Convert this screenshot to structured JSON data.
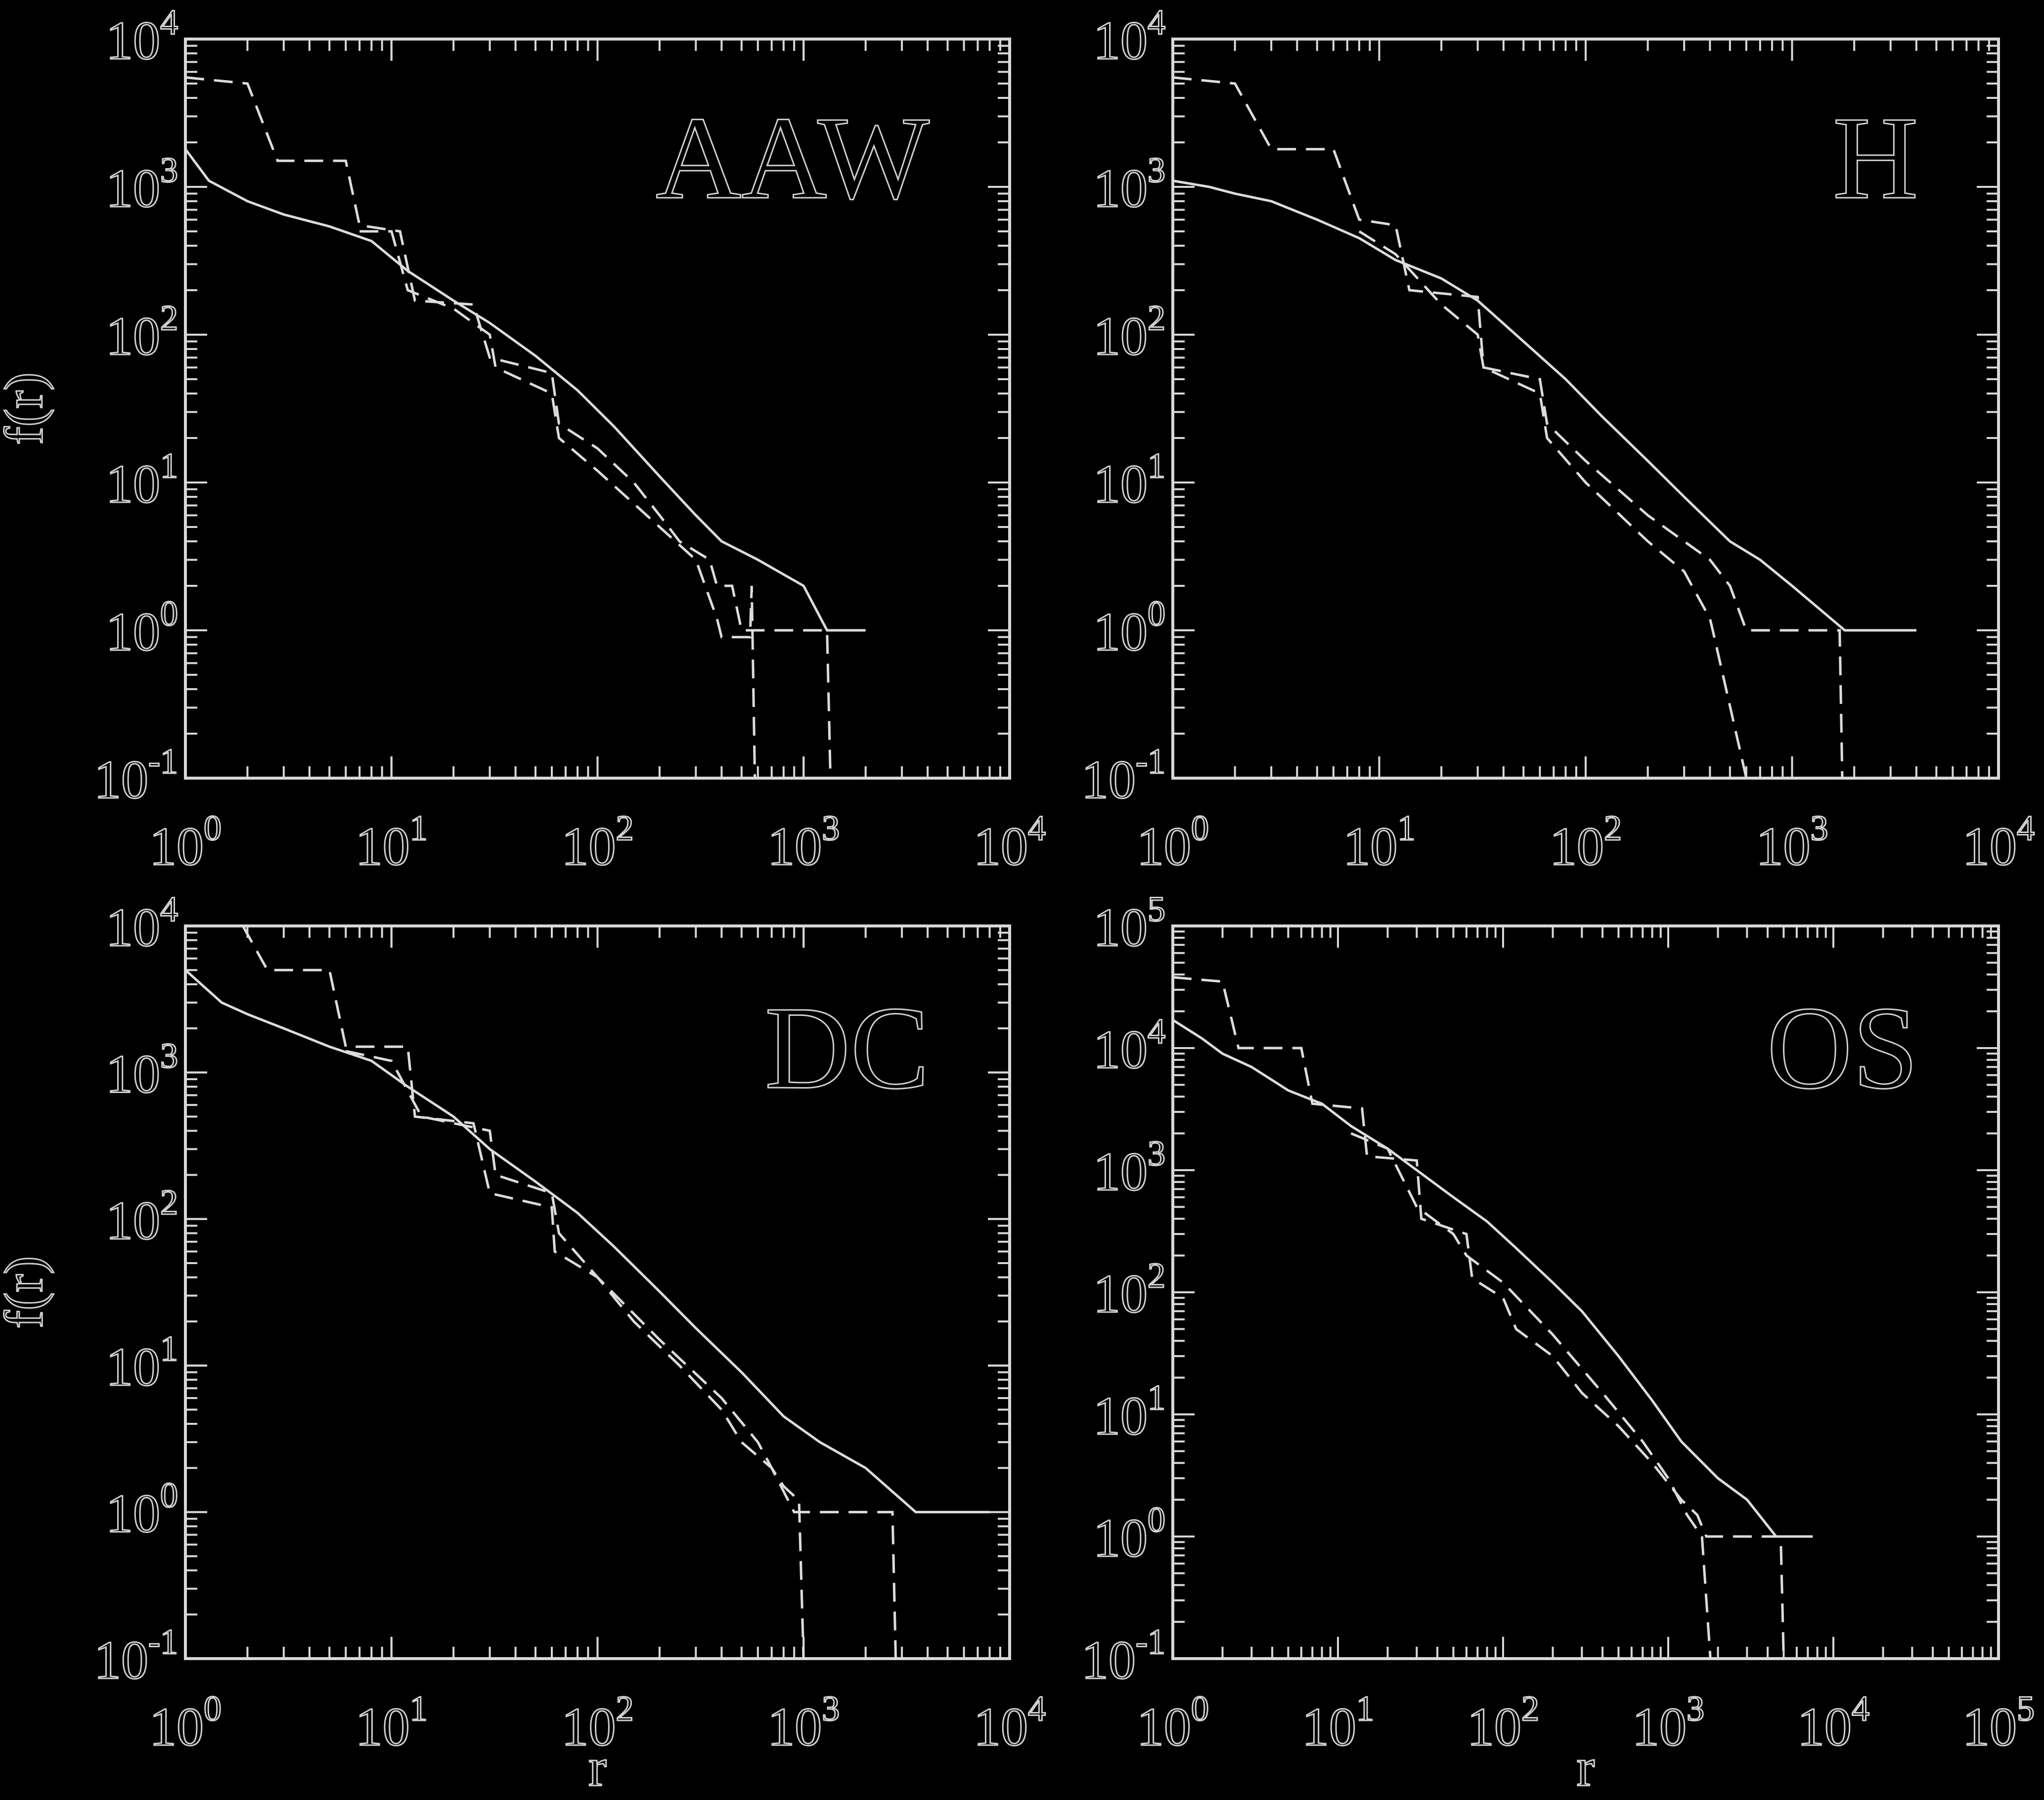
{
  "chart_data": [
    {
      "type": "line",
      "title": "AAW",
      "xlabel": "",
      "ylabel": "f(r)",
      "xscale": "log",
      "yscale": "log",
      "xlim": [
        1,
        10000
      ],
      "ylim": [
        0.1,
        10000
      ],
      "xticks": [
        {
          "base": "10",
          "exp": "0"
        },
        {
          "base": "10",
          "exp": "1"
        },
        {
          "base": "10",
          "exp": "2"
        },
        {
          "base": "10",
          "exp": "3"
        },
        {
          "base": "10",
          "exp": "4"
        }
      ],
      "yticks": [
        {
          "base": "10",
          "exp": "-1"
        },
        {
          "base": "10",
          "exp": "0"
        },
        {
          "base": "10",
          "exp": "1"
        },
        {
          "base": "10",
          "exp": "2"
        },
        {
          "base": "10",
          "exp": "3"
        },
        {
          "base": "10",
          "exp": "4"
        }
      ],
      "series": [
        {
          "style": "solid",
          "points": [
            [
              1,
              1800
            ],
            [
              1.3,
              1100
            ],
            [
              2,
              800
            ],
            [
              3,
              650
            ],
            [
              5,
              540
            ],
            [
              8,
              430
            ],
            [
              12,
              270
            ],
            [
              20,
              170
            ],
            [
              30,
              120
            ],
            [
              50,
              72
            ],
            [
              80,
              42
            ],
            [
              120,
              24
            ],
            [
              200,
              11
            ],
            [
              300,
              6
            ],
            [
              400,
              4
            ],
            [
              600,
              3
            ],
            [
              1000,
              2
            ],
            [
              1300,
              1
            ],
            [
              2000,
              1
            ]
          ]
        },
        {
          "style": "dashed",
          "points": [
            [
              1,
              5500
            ],
            [
              2,
              5000
            ],
            [
              2.8,
              1500
            ],
            [
              6,
              1500
            ],
            [
              7,
              550
            ],
            [
              11,
              500
            ],
            [
              13,
              170
            ],
            [
              25,
              160
            ],
            [
              30,
              70
            ],
            [
              60,
              55
            ],
            [
              65,
              25
            ],
            [
              100,
              17
            ],
            [
              150,
              10
            ],
            [
              200,
              6
            ],
            [
              250,
              4
            ],
            [
              350,
              3
            ],
            [
              380,
              2
            ],
            [
              450,
              2
            ],
            [
              500,
              1
            ],
            [
              1300,
              1
            ],
            [
              1350,
              0.1
            ]
          ]
        },
        {
          "style": "dashed",
          "points": [
            [
              7,
              500
            ],
            [
              10,
              500
            ],
            [
              12,
              200
            ],
            [
              20,
              150
            ],
            [
              30,
              100
            ],
            [
              32,
              60
            ],
            [
              60,
              40
            ],
            [
              65,
              20
            ],
            [
              100,
              12
            ],
            [
              200,
              5
            ],
            [
              300,
              3
            ],
            [
              380,
              1.2
            ],
            [
              400,
              0.9
            ],
            [
              550,
              0.9
            ],
            [
              560,
              2
            ],
            [
              580,
              0.1
            ]
          ]
        }
      ]
    },
    {
      "type": "line",
      "title": "H",
      "xlabel": "",
      "ylabel": "",
      "xscale": "log",
      "yscale": "log",
      "xlim": [
        1,
        10000
      ],
      "ylim": [
        0.1,
        10000
      ],
      "xticks": [
        {
          "base": "10",
          "exp": "0"
        },
        {
          "base": "10",
          "exp": "1"
        },
        {
          "base": "10",
          "exp": "2"
        },
        {
          "base": "10",
          "exp": "3"
        },
        {
          "base": "10",
          "exp": "4"
        }
      ],
      "yticks": [
        {
          "base": "10",
          "exp": "-1"
        },
        {
          "base": "10",
          "exp": "0"
        },
        {
          "base": "10",
          "exp": "1"
        },
        {
          "base": "10",
          "exp": "2"
        },
        {
          "base": "10",
          "exp": "3"
        },
        {
          "base": "10",
          "exp": "4"
        }
      ],
      "series": [
        {
          "style": "solid",
          "points": [
            [
              1,
              1100
            ],
            [
              1.5,
              1000
            ],
            [
              2,
              900
            ],
            [
              3,
              800
            ],
            [
              5,
              600
            ],
            [
              8,
              450
            ],
            [
              12,
              320
            ],
            [
              20,
              240
            ],
            [
              30,
              170
            ],
            [
              50,
              90
            ],
            [
              80,
              50
            ],
            [
              120,
              28
            ],
            [
              200,
              14
            ],
            [
              300,
              8
            ],
            [
              500,
              4
            ],
            [
              700,
              3
            ],
            [
              1000,
              2
            ],
            [
              1800,
              1
            ],
            [
              4000,
              1
            ]
          ]
        },
        {
          "style": "dashed",
          "points": [
            [
              1,
              5500
            ],
            [
              2,
              5000
            ],
            [
              3,
              1800
            ],
            [
              6,
              1800
            ],
            [
              8,
              600
            ],
            [
              12,
              550
            ],
            [
              14,
              200
            ],
            [
              30,
              180
            ],
            [
              32,
              60
            ],
            [
              60,
              50
            ],
            [
              65,
              25
            ],
            [
              100,
              14
            ],
            [
              200,
              6
            ],
            [
              300,
              4
            ],
            [
              400,
              3
            ],
            [
              500,
              2
            ],
            [
              600,
              1
            ],
            [
              1700,
              1
            ],
            [
              1750,
              0.1
            ]
          ]
        },
        {
          "style": "dashed",
          "points": [
            [
              8,
              500
            ],
            [
              12,
              350
            ],
            [
              20,
              160
            ],
            [
              30,
              100
            ],
            [
              32,
              60
            ],
            [
              60,
              40
            ],
            [
              65,
              20
            ],
            [
              100,
              10
            ],
            [
              200,
              4
            ],
            [
              300,
              2.5
            ],
            [
              400,
              1.2
            ],
            [
              420,
              0.9
            ],
            [
              600,
              0.1
            ]
          ]
        }
      ]
    },
    {
      "type": "line",
      "title": "DC",
      "xlabel": "r",
      "ylabel": "f(r)",
      "xscale": "log",
      "yscale": "log",
      "xlim": [
        1,
        10000
      ],
      "ylim": [
        0.1,
        10000
      ],
      "xticks": [
        {
          "base": "10",
          "exp": "0"
        },
        {
          "base": "10",
          "exp": "1"
        },
        {
          "base": "10",
          "exp": "2"
        },
        {
          "base": "10",
          "exp": "3"
        },
        {
          "base": "10",
          "exp": "4"
        }
      ],
      "yticks": [
        {
          "base": "10",
          "exp": "-1"
        },
        {
          "base": "10",
          "exp": "0"
        },
        {
          "base": "10",
          "exp": "1"
        },
        {
          "base": "10",
          "exp": "2"
        },
        {
          "base": "10",
          "exp": "3"
        },
        {
          "base": "10",
          "exp": "4"
        }
      ],
      "series": [
        {
          "style": "solid",
          "points": [
            [
              1,
              5000
            ],
            [
              1.5,
              3000
            ],
            [
              2,
              2500
            ],
            [
              3,
              2000
            ],
            [
              5,
              1500
            ],
            [
              8,
              1200
            ],
            [
              12,
              800
            ],
            [
              20,
              500
            ],
            [
              30,
              300
            ],
            [
              50,
              180
            ],
            [
              80,
              110
            ],
            [
              120,
              65
            ],
            [
              200,
              32
            ],
            [
              300,
              18
            ],
            [
              500,
              9
            ],
            [
              800,
              4.5
            ],
            [
              1200,
              3
            ],
            [
              2000,
              2
            ],
            [
              3500,
              1
            ],
            [
              8000,
              1
            ]
          ]
        },
        {
          "style": "dashed",
          "points": [
            [
              1.9,
              10000
            ],
            [
              2.5,
              5000
            ],
            [
              5,
              5000
            ],
            [
              6,
              1500
            ],
            [
              12,
              1500
            ],
            [
              13,
              500
            ],
            [
              25,
              450
            ],
            [
              30,
              150
            ],
            [
              60,
              120
            ],
            [
              62,
              60
            ],
            [
              100,
              40
            ],
            [
              150,
              20
            ],
            [
              250,
              10
            ],
            [
              400,
              5
            ],
            [
              500,
              3
            ],
            [
              700,
              2
            ],
            [
              900,
              1
            ],
            [
              2700,
              1
            ],
            [
              2800,
              0.1
            ]
          ]
        },
        {
          "style": "dashed",
          "points": [
            [
              6,
              1400
            ],
            [
              10,
              1200
            ],
            [
              14,
              500
            ],
            [
              30,
              400
            ],
            [
              32,
              200
            ],
            [
              60,
              150
            ],
            [
              65,
              80
            ],
            [
              100,
              40
            ],
            [
              200,
              15
            ],
            [
              400,
              6
            ],
            [
              600,
              3
            ],
            [
              700,
              2
            ],
            [
              800,
              1.5
            ],
            [
              950,
              1.2
            ],
            [
              1000,
              0.1
            ]
          ]
        }
      ]
    },
    {
      "type": "line",
      "title": "OS",
      "xlabel": "r",
      "ylabel": "",
      "xscale": "log",
      "yscale": "log",
      "xlim": [
        1,
        100000
      ],
      "ylim": [
        0.1,
        100000
      ],
      "xticks": [
        {
          "base": "10",
          "exp": "0"
        },
        {
          "base": "10",
          "exp": "1"
        },
        {
          "base": "10",
          "exp": "2"
        },
        {
          "base": "10",
          "exp": "3"
        },
        {
          "base": "10",
          "exp": "4"
        },
        {
          "base": "10",
          "exp": "5"
        }
      ],
      "yticks": [
        {
          "base": "10",
          "exp": "-1"
        },
        {
          "base": "10",
          "exp": "0"
        },
        {
          "base": "10",
          "exp": "1"
        },
        {
          "base": "10",
          "exp": "2"
        },
        {
          "base": "10",
          "exp": "3"
        },
        {
          "base": "10",
          "exp": "4"
        },
        {
          "base": "10",
          "exp": "5"
        }
      ],
      "series": [
        {
          "style": "solid",
          "points": [
            [
              1,
              17000
            ],
            [
              1.5,
              12000
            ],
            [
              2,
              9000
            ],
            [
              3,
              7000
            ],
            [
              5,
              4500
            ],
            [
              8,
              3500
            ],
            [
              12,
              2300
            ],
            [
              20,
              1500
            ],
            [
              30,
              1000
            ],
            [
              50,
              600
            ],
            [
              80,
              380
            ],
            [
              120,
              230
            ],
            [
              200,
              120
            ],
            [
              300,
              70
            ],
            [
              500,
              30
            ],
            [
              800,
              13
            ],
            [
              1200,
              6
            ],
            [
              2000,
              3
            ],
            [
              3000,
              2
            ],
            [
              4500,
              1
            ],
            [
              7500,
              1
            ]
          ]
        },
        {
          "style": "dashed",
          "points": [
            [
              1,
              38000
            ],
            [
              2,
              35000
            ],
            [
              2.5,
              10000
            ],
            [
              6,
              10000
            ],
            [
              7,
              3500
            ],
            [
              14,
              3200
            ],
            [
              15,
              1300
            ],
            [
              30,
              1200
            ],
            [
              32,
              400
            ],
            [
              60,
              300
            ],
            [
              65,
              130
            ],
            [
              100,
              90
            ],
            [
              120,
              50
            ],
            [
              200,
              30
            ],
            [
              300,
              15
            ],
            [
              500,
              8
            ],
            [
              800,
              4
            ],
            [
              1200,
              2
            ],
            [
              1500,
              1.5
            ],
            [
              1700,
              1
            ],
            [
              4800,
              1
            ],
            [
              5000,
              0.1
            ]
          ]
        },
        {
          "style": "dashed",
          "points": [
            [
              12,
              2000
            ],
            [
              20,
              1500
            ],
            [
              30,
              500
            ],
            [
              50,
              300
            ],
            [
              60,
              200
            ],
            [
              100,
              120
            ],
            [
              200,
              45
            ],
            [
              400,
              15
            ],
            [
              700,
              6
            ],
            [
              1000,
              3
            ],
            [
              1300,
              1.5
            ],
            [
              1600,
              1
            ],
            [
              1800,
              0.1
            ]
          ]
        }
      ]
    }
  ]
}
